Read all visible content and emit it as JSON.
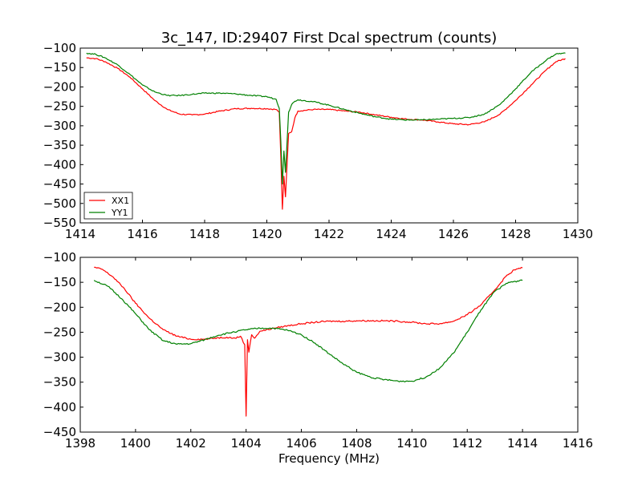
{
  "chart_data": [
    {
      "type": "line",
      "title": "3c_147, ID:29407 First Dcal spectrum (counts)",
      "xlabel": "",
      "ylabel": "",
      "xlim": [
        1414,
        1430
      ],
      "ylim": [
        -550,
        -100
      ],
      "xticks": [
        "1414",
        "1416",
        "1418",
        "1420",
        "1422",
        "1424",
        "1426",
        "1428",
        "1430"
      ],
      "yticks": [
        "−100",
        "−150",
        "−200",
        "−250",
        "−300",
        "−350",
        "−400",
        "−450",
        "−500",
        "−550"
      ],
      "legend": {
        "position": "lower-left",
        "entries": [
          "XX1",
          "YY1"
        ]
      },
      "series": [
        {
          "name": "XX1",
          "color": "#ff0000",
          "x": [
            1414.2,
            1414.5,
            1414.8,
            1415.2,
            1415.6,
            1416.0,
            1416.4,
            1416.8,
            1417.2,
            1417.6,
            1418.0,
            1418.5,
            1419.0,
            1419.5,
            1420.0,
            1420.3,
            1420.4,
            1420.45,
            1420.5,
            1420.55,
            1420.6,
            1420.7,
            1420.8,
            1420.9,
            1421.0,
            1421.5,
            1422.0,
            1422.5,
            1423.0,
            1423.5,
            1424.0,
            1424.5,
            1425.0,
            1425.5,
            1426.0,
            1426.5,
            1427.0,
            1427.5,
            1428.0,
            1428.5,
            1429.0,
            1429.3,
            1429.6
          ],
          "y": [
            -125,
            -127,
            -135,
            -152,
            -175,
            -205,
            -235,
            -258,
            -270,
            -272,
            -270,
            -262,
            -256,
            -255,
            -256,
            -258,
            -265,
            -380,
            -515,
            -430,
            -483,
            -320,
            -315,
            -280,
            -262,
            -258,
            -258,
            -262,
            -265,
            -272,
            -278,
            -283,
            -285,
            -290,
            -295,
            -297,
            -290,
            -270,
            -235,
            -195,
            -155,
            -135,
            -127
          ]
        },
        {
          "name": "YY1",
          "color": "#008000",
          "x": [
            1414.2,
            1414.5,
            1414.8,
            1415.2,
            1415.6,
            1416.0,
            1416.4,
            1416.8,
            1417.2,
            1417.6,
            1418.0,
            1418.5,
            1419.0,
            1419.5,
            1420.0,
            1420.3,
            1420.4,
            1420.45,
            1420.5,
            1420.55,
            1420.6,
            1420.7,
            1420.8,
            1420.9,
            1421.0,
            1421.5,
            1422.0,
            1422.5,
            1423.0,
            1423.5,
            1424.0,
            1424.5,
            1425.0,
            1425.5,
            1426.0,
            1426.5,
            1427.0,
            1427.5,
            1428.0,
            1428.5,
            1429.0,
            1429.3,
            1429.6
          ],
          "y": [
            -113,
            -116,
            -125,
            -143,
            -168,
            -195,
            -213,
            -222,
            -222,
            -219,
            -216,
            -216,
            -218,
            -222,
            -225,
            -232,
            -255,
            -340,
            -450,
            -365,
            -420,
            -265,
            -245,
            -237,
            -233,
            -238,
            -247,
            -258,
            -268,
            -277,
            -283,
            -285,
            -285,
            -283,
            -281,
            -279,
            -270,
            -245,
            -205,
            -162,
            -130,
            -115,
            -113
          ]
        }
      ]
    },
    {
      "type": "line",
      "title": "",
      "xlabel": "Frequency (MHz)",
      "ylabel": "",
      "xlim": [
        1398,
        1416
      ],
      "ylim": [
        -450,
        -100
      ],
      "xticks": [
        "1398",
        "1400",
        "1402",
        "1404",
        "1406",
        "1408",
        "1410",
        "1412",
        "1414",
        "1416"
      ],
      "yticks": [
        "−100",
        "−150",
        "−200",
        "−250",
        "−300",
        "−350",
        "−400",
        "−450"
      ],
      "series": [
        {
          "name": "",
          "color": "#ff0000",
          "x": [
            1398.5,
            1398.8,
            1399.2,
            1399.6,
            1400.0,
            1400.5,
            1401.0,
            1401.5,
            1402.0,
            1402.5,
            1403.0,
            1403.3,
            1403.6,
            1403.8,
            1403.95,
            1404.0,
            1404.05,
            1404.1,
            1404.2,
            1404.3,
            1404.5,
            1405.0,
            1405.5,
            1406.0,
            1406.5,
            1407.0,
            1407.5,
            1408.0,
            1408.5,
            1409.0,
            1409.5,
            1410.0,
            1410.5,
            1411.0,
            1411.5,
            1412.0,
            1412.5,
            1413.0,
            1413.4,
            1413.7,
            1414.0
          ],
          "y": [
            -120,
            -124,
            -140,
            -163,
            -192,
            -222,
            -245,
            -258,
            -264,
            -264,
            -261,
            -260,
            -262,
            -258,
            -275,
            -418,
            -265,
            -290,
            -255,
            -262,
            -248,
            -242,
            -237,
            -233,
            -230,
            -228,
            -228,
            -227,
            -227,
            -227,
            -228,
            -230,
            -233,
            -233,
            -228,
            -215,
            -195,
            -165,
            -138,
            -125,
            -121
          ]
        },
        {
          "name": "",
          "color": "#008000",
          "x": [
            1398.5,
            1399.0,
            1399.5,
            1400.0,
            1400.5,
            1401.0,
            1401.5,
            1402.0,
            1402.5,
            1403.0,
            1403.5,
            1404.0,
            1404.5,
            1405.0,
            1405.5,
            1406.0,
            1406.5,
            1407.0,
            1407.5,
            1408.0,
            1408.5,
            1409.0,
            1409.5,
            1410.0,
            1410.5,
            1411.0,
            1411.5,
            1412.0,
            1412.5,
            1413.0,
            1413.5,
            1414.0
          ],
          "y": [
            -146,
            -158,
            -183,
            -213,
            -245,
            -267,
            -274,
            -273,
            -265,
            -256,
            -250,
            -245,
            -242,
            -242,
            -246,
            -255,
            -272,
            -293,
            -313,
            -330,
            -340,
            -345,
            -348,
            -348,
            -340,
            -322,
            -292,
            -250,
            -205,
            -168,
            -150,
            -146
          ]
        }
      ]
    }
  ]
}
